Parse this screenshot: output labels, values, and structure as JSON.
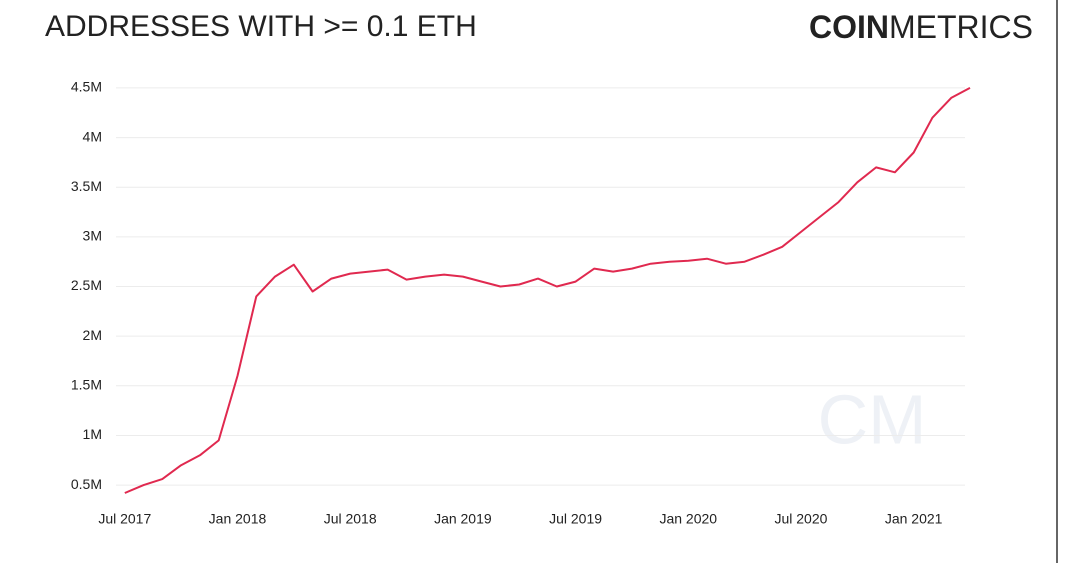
{
  "chart_data": {
    "type": "line",
    "title": "ADDRESSES WITH >= 0.1 ETH",
    "brand": {
      "bold": "COIN",
      "light": "METRICS"
    },
    "watermark": "CM",
    "x": [
      "2017-07",
      "2017-08",
      "2017-09",
      "2017-10",
      "2017-11",
      "2017-12",
      "2018-01",
      "2018-02",
      "2018-03",
      "2018-04",
      "2018-05",
      "2018-06",
      "2018-07",
      "2018-08",
      "2018-09",
      "2018-10",
      "2018-11",
      "2018-12",
      "2019-01",
      "2019-02",
      "2019-03",
      "2019-04",
      "2019-05",
      "2019-06",
      "2019-07",
      "2019-08",
      "2019-09",
      "2019-10",
      "2019-11",
      "2019-12",
      "2020-01",
      "2020-02",
      "2020-03",
      "2020-04",
      "2020-05",
      "2020-06",
      "2020-07",
      "2020-08",
      "2020-09",
      "2020-10",
      "2020-11",
      "2020-12",
      "2021-01",
      "2021-02",
      "2021-03",
      "2021-04"
    ],
    "series": [
      {
        "name": "Addresses",
        "color": "#e0294f",
        "values": [
          420000,
          500000,
          560000,
          700000,
          800000,
          950000,
          1600000,
          2400000,
          2600000,
          2720000,
          2450000,
          2580000,
          2630000,
          2650000,
          2670000,
          2570000,
          2600000,
          2620000,
          2600000,
          2550000,
          2500000,
          2520000,
          2580000,
          2500000,
          2550000,
          2680000,
          2650000,
          2680000,
          2730000,
          2750000,
          2760000,
          2780000,
          2730000,
          2750000,
          2820000,
          2900000,
          3050000,
          3200000,
          3350000,
          3550000,
          3700000,
          3650000,
          3850000,
          4200000,
          4400000,
          4500000
        ]
      }
    ],
    "xlim": [
      "2017-06",
      "2021-04"
    ],
    "xticks": [
      {
        "value": "2017-07",
        "label": "Jul 2017"
      },
      {
        "value": "2018-01",
        "label": "Jan 2018"
      },
      {
        "value": "2018-07",
        "label": "Jul 2018"
      },
      {
        "value": "2019-01",
        "label": "Jan 2019"
      },
      {
        "value": "2019-07",
        "label": "Jul 2019"
      },
      {
        "value": "2020-01",
        "label": "Jan 2020"
      },
      {
        "value": "2020-07",
        "label": "Jul 2020"
      },
      {
        "value": "2021-01",
        "label": "Jan 2021"
      }
    ],
    "ylim": [
      350000,
      4600000
    ],
    "yticks": [
      {
        "value": 500000,
        "label": "0.5M"
      },
      {
        "value": 1000000,
        "label": "1M"
      },
      {
        "value": 1500000,
        "label": "1.5M"
      },
      {
        "value": 2000000,
        "label": "2M"
      },
      {
        "value": 2500000,
        "label": "2.5M"
      },
      {
        "value": 3000000,
        "label": "3M"
      },
      {
        "value": 3500000,
        "label": "3.5M"
      },
      {
        "value": 4000000,
        "label": "4M"
      },
      {
        "value": 4500000,
        "label": "4.5M"
      }
    ],
    "grid": true
  }
}
